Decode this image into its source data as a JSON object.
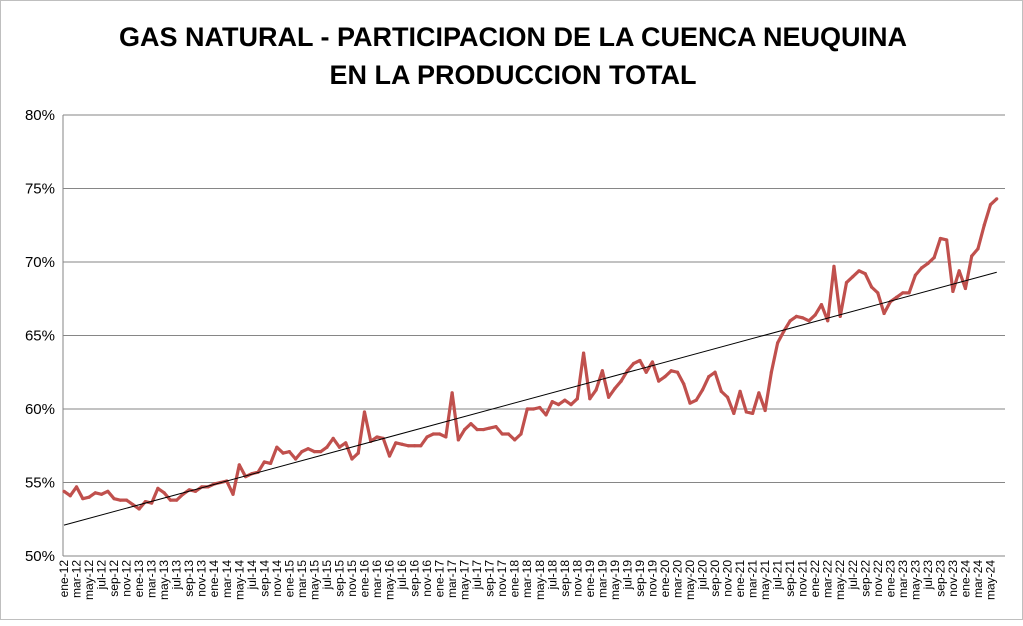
{
  "chart_data": {
    "type": "line",
    "title": [
      "GAS NATURAL - PARTICIPACION DE LA CUENCA NEUQUINA",
      "EN LA PRODUCCION TOTAL"
    ],
    "xlabel": "",
    "ylabel": "",
    "ylim": [
      50,
      80
    ],
    "yticks": [
      "50%",
      "55%",
      "60%",
      "65%",
      "70%",
      "75%",
      "80%"
    ],
    "ytick_values": [
      50,
      55,
      60,
      65,
      70,
      75,
      80
    ],
    "grid": true,
    "legend": "none",
    "colors": {
      "series": "#c0504d",
      "trend": "#000000",
      "grid": "#868686"
    },
    "x_start": "ene-12",
    "x_end": "jun-24",
    "xtick_labels": [
      "ene-12",
      "mar-12",
      "may-12",
      "jul-12",
      "sep-12",
      "nov-12",
      "ene-13",
      "mar-13",
      "may-13",
      "jul-13",
      "sep-13",
      "nov-13",
      "ene-14",
      "mar-14",
      "may-14",
      "jul-14",
      "sep-14",
      "nov-14",
      "ene-15",
      "mar-15",
      "may-15",
      "jul-15",
      "sep-15",
      "nov-15",
      "ene-16",
      "mar-16",
      "may-16",
      "jul-16",
      "sep-16",
      "nov-16",
      "ene-17",
      "mar-17",
      "may-17",
      "jul-17",
      "sep-17",
      "nov-17",
      "ene-18",
      "mar-18",
      "may-18",
      "jul-18",
      "sep-18",
      "nov-18",
      "ene-19",
      "mar-19",
      "may-19",
      "jul-19",
      "sep-19",
      "nov-19",
      "ene-20",
      "mar-20",
      "may-20",
      "jul-20",
      "sep-20",
      "nov-20",
      "ene-21",
      "mar-21",
      "may-21",
      "jul-21",
      "sep-21",
      "nov-21",
      "ene-22",
      "mar-22",
      "may-22",
      "jul-22",
      "sep-22",
      "nov-22",
      "ene-23",
      "mar-23",
      "may-23",
      "jul-23",
      "sep-23",
      "nov-23",
      "ene-24",
      "mar-24",
      "may-24"
    ],
    "series": [
      {
        "values": [
          54.4,
          54.1,
          54.7,
          53.9,
          54.0,
          54.3,
          54.2,
          54.4,
          53.9,
          53.8,
          53.8,
          53.5,
          53.2,
          53.7,
          53.6,
          54.6,
          54.3,
          53.8,
          53.8,
          54.2,
          54.5,
          54.4,
          54.7,
          54.7,
          54.9,
          55.0,
          55.1,
          54.2,
          56.2,
          55.4,
          55.6,
          55.7,
          56.4,
          56.3,
          57.4,
          57.0,
          57.1,
          56.6,
          57.1,
          57.3,
          57.1,
          57.1,
          57.4,
          58.0,
          57.4,
          57.7,
          56.6,
          57.0,
          59.8,
          57.8,
          58.1,
          58.0,
          56.8,
          57.7,
          57.6,
          57.5,
          57.5,
          57.5,
          58.1,
          58.3,
          58.3,
          58.1,
          61.1,
          57.9,
          58.6,
          59.0,
          58.6,
          58.6,
          58.7,
          58.8,
          58.3,
          58.3,
          57.9,
          58.3,
          60.0,
          60.0,
          60.1,
          59.6,
          60.5,
          60.3,
          60.6,
          60.3,
          60.7,
          63.8,
          60.7,
          61.3,
          62.6,
          60.8,
          61.4,
          61.9,
          62.6,
          63.1,
          63.3,
          62.5,
          63.2,
          61.9,
          62.2,
          62.6,
          62.5,
          61.7,
          60.4,
          60.6,
          61.3,
          62.2,
          62.5,
          61.2,
          60.8,
          59.7,
          61.2,
          59.8,
          59.7,
          61.1,
          59.9,
          62.5,
          64.5,
          65.3,
          66.0,
          66.3,
          66.2,
          66.0,
          66.4,
          67.1,
          66.0,
          69.7,
          66.3,
          68.6,
          69.0,
          69.4,
          69.2,
          68.3,
          67.9,
          66.5,
          67.3,
          67.6,
          67.9,
          67.9,
          69.1,
          69.6,
          69.9,
          70.3,
          71.6,
          71.5,
          68.0,
          69.4,
          68.2,
          70.4,
          70.9,
          72.5,
          73.9,
          74.3
        ]
      }
    ],
    "trendline": {
      "type": "linear",
      "start_value": 52.1,
      "end_value": 69.3
    }
  }
}
